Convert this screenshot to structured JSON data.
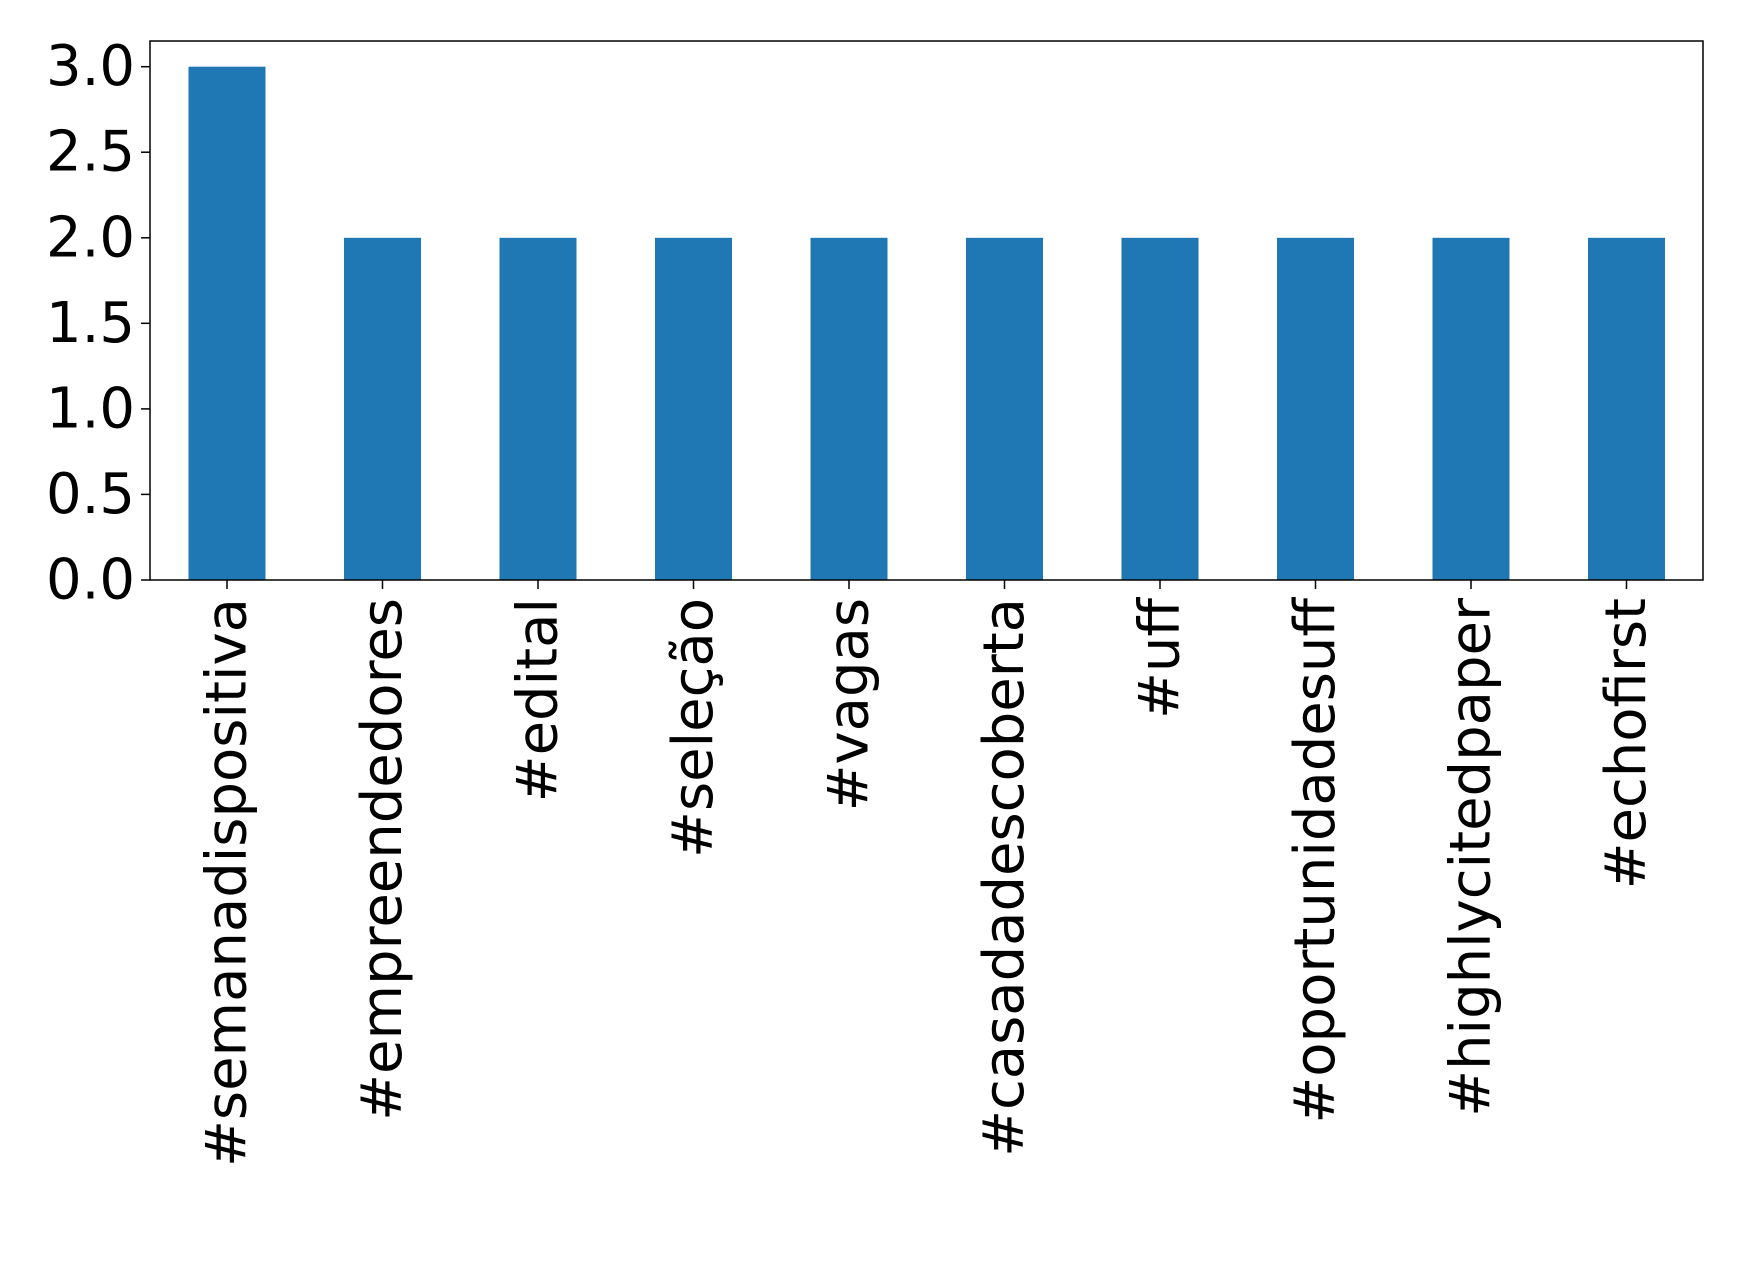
{
  "chart_data": {
    "type": "bar",
    "title": "",
    "xlabel": "",
    "ylabel": "",
    "categories": [
      "#semanadispositiva",
      "#empreendedores",
      "#edital",
      "#seleção",
      "#vagas",
      "#casadadescoberta",
      "#uff",
      "#oportunidadesuff",
      "#highlycitedpaper",
      "#echofirst"
    ],
    "values": [
      3,
      2,
      2,
      2,
      2,
      2,
      2,
      2,
      2,
      2
    ],
    "ylim": [
      0,
      3.15
    ],
    "yticks": [
      "0.0",
      "0.5",
      "1.0",
      "1.5",
      "2.0",
      "2.5",
      "3.0"
    ],
    "bar_color": "#1f77b4",
    "grid": false,
    "legend": "none"
  }
}
